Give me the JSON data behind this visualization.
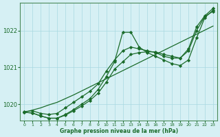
{
  "xlabel": "Graphe pression niveau de la mer (hPa)",
  "ylabel": "",
  "bg_color": "#d6f0f4",
  "grid_color": "#a8d8e0",
  "line_color": "#1a6b2a",
  "spine_color": "#4a8a5a",
  "xlim": [
    -0.5,
    23.5
  ],
  "ylim": [
    1019.55,
    1022.75
  ],
  "yticks": [
    1020,
    1021,
    1022
  ],
  "xticks": [
    0,
    1,
    2,
    3,
    4,
    5,
    6,
    7,
    8,
    9,
    10,
    11,
    12,
    13,
    14,
    15,
    16,
    17,
    18,
    19,
    20,
    21,
    22,
    23
  ],
  "series": [
    [
      1019.8,
      1019.82,
      1019.75,
      1019.72,
      1019.75,
      1019.9,
      1020.05,
      1020.2,
      1020.35,
      1020.55,
      1020.9,
      1021.2,
      1021.45,
      1021.55,
      1021.5,
      1021.45,
      1021.4,
      1021.3,
      1021.25,
      1021.25,
      1021.5,
      1022.1,
      1022.4,
      1022.6
    ],
    [
      1019.78,
      1019.76,
      1019.68,
      1019.62,
      1019.62,
      1019.72,
      1019.85,
      1020.0,
      1020.15,
      1020.4,
      1020.75,
      1021.15,
      1021.95,
      1021.95,
      1021.55,
      1021.4,
      1021.3,
      1021.2,
      1021.1,
      1021.05,
      1021.2,
      1021.8,
      1022.35,
      1022.55
    ],
    [
      1019.78,
      1019.76,
      1019.68,
      1019.62,
      1019.62,
      1019.7,
      1019.82,
      1019.95,
      1020.1,
      1020.3,
      1020.6,
      1020.95,
      1021.15,
      1021.35,
      1021.4,
      1021.42,
      1021.42,
      1021.35,
      1021.3,
      1021.25,
      1021.45,
      1022.0,
      1022.38,
      1022.52
    ],
    [
      1019.78,
      1019.84,
      1019.9,
      1019.98,
      1020.05,
      1020.15,
      1020.25,
      1020.36,
      1020.47,
      1020.58,
      1020.69,
      1020.8,
      1020.91,
      1021.02,
      1021.13,
      1021.24,
      1021.35,
      1021.46,
      1021.57,
      1021.68,
      1021.79,
      1021.9,
      1022.01,
      1022.12
    ]
  ]
}
